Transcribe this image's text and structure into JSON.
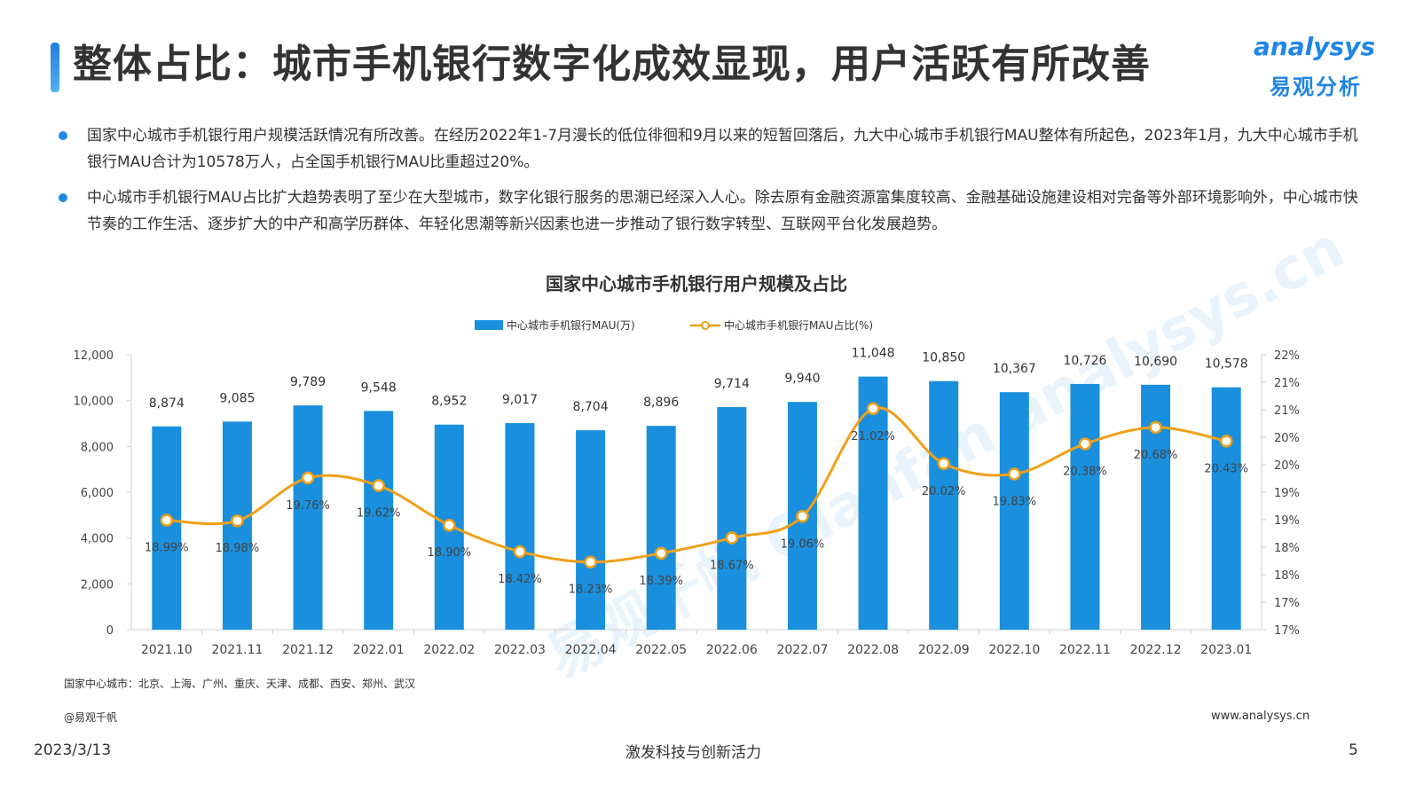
{
  "header": {
    "title": "整体占比：城市手机银行数字化成效显现，用户活跃有所改善",
    "logo_en": "analysys",
    "logo_cn": "易观分析"
  },
  "bullets": [
    "国家中心城市手机银行用户规模活跃情况有所改善。在经历2022年1-7月漫长的低位徘徊和9月以来的短暂回落后，九大中心城市手机银行MAU整体有所起色，2023年1月，九大中心城市手机银行MAU合计为10578万人，占全国手机银行MAU比重超过20%。",
    "中心城市手机银行MAU占比扩大趋势表明了至少在大型城市，数字化银行服务的思潮已经深入人心。除去原有金融资源富集度较高、金融基础设施建设相对完备等外部环境影响外，中心城市快节奏的工作生活、逐步扩大的中产和高学历群体、年轻化思潮等新兴因素也进一步推动了银行数字转型、互联网平台化发展趋势。"
  ],
  "watermark": "易观千帆 Qianfan.analysys.cn",
  "chart_data": {
    "type": "bar",
    "title": "国家中心城市手机银行用户规模及占比",
    "categories": [
      "2021.10",
      "2021.11",
      "2021.12",
      "2022.01",
      "2022.02",
      "2022.03",
      "2022.04",
      "2022.05",
      "2022.06",
      "2022.07",
      "2022.08",
      "2022.09",
      "2022.10",
      "2022.11",
      "2022.12",
      "2023.01"
    ],
    "series": [
      {
        "name": "中心城市手机银行MAU(万)",
        "type": "bar",
        "axis": "left",
        "color": "#1a8fdd",
        "values": [
          8874,
          9085,
          9789,
          9548,
          8952,
          9017,
          8704,
          8896,
          9714,
          9940,
          11048,
          10850,
          10367,
          10726,
          10690,
          10578
        ],
        "labels": [
          "8,874",
          "9,085",
          "9,789",
          "9,548",
          "8,952",
          "9,017",
          "8,704",
          "8,896",
          "9,714",
          "9,940",
          "11,048",
          "10,850",
          "10,367",
          "10,726",
          "10,690",
          "10,578"
        ]
      },
      {
        "name": "中心城市手机银行MAU占比(%)",
        "type": "line",
        "axis": "right",
        "color": "#f0a018",
        "values": [
          18.99,
          18.98,
          19.76,
          19.62,
          18.9,
          18.42,
          18.23,
          18.39,
          18.67,
          19.06,
          21.02,
          20.02,
          19.83,
          20.38,
          20.68,
          20.43
        ],
        "labels": [
          "18.99%",
          "18.98%",
          "19.76%",
          "19.62%",
          "18.90%",
          "18.42%",
          "18.23%",
          "18.39%",
          "18.67%",
          "19.06%",
          "21.02%",
          "20.02%",
          "19.83%",
          "20.38%",
          "20.68%",
          "20.43%"
        ]
      }
    ],
    "y_left": {
      "min": 0,
      "max": 12000,
      "ticks": [
        "0",
        "2,000",
        "4,000",
        "6,000",
        "8,000",
        "10,000",
        "12,000"
      ]
    },
    "y_right": {
      "min": 17,
      "max": 22,
      "ticks": [
        "17%",
        "17%",
        "18%",
        "18%",
        "19%",
        "19%",
        "20%",
        "20%",
        "21%",
        "21%",
        "22%"
      ]
    },
    "legend_position": "top-center",
    "grid": false
  },
  "footer": {
    "footnote": "国家中心城市：北京、上海、广州、重庆、天津、成都、西安、郑州、武汉",
    "source": "@易观千帆",
    "site": "www.analysys.cn",
    "date": "2023/3/13",
    "slogan": "激发科技与创新活力",
    "page": "5"
  }
}
